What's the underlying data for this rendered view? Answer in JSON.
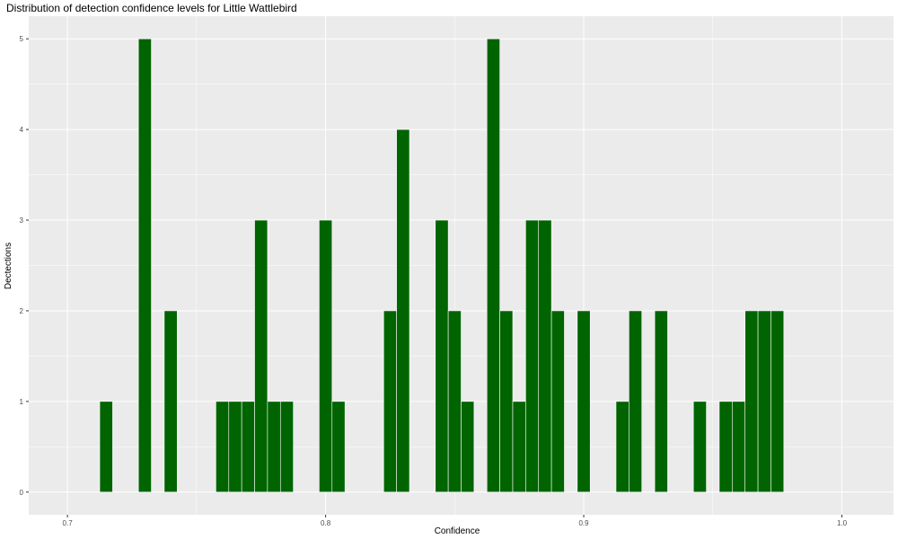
{
  "chart_data": {
    "type": "bar",
    "title": "Distribution of detection confidence levels for Little Wattlebird",
    "xlabel": "Confidence",
    "ylabel": "Dectections",
    "xlim": [
      0.685,
      1.02
    ],
    "ylim": [
      -0.25,
      5.25
    ],
    "x_ticks": [
      0.7,
      0.8,
      0.9,
      1.0
    ],
    "x_tick_labels": [
      "0.7",
      "0.8",
      "0.9",
      "1.0"
    ],
    "y_ticks": [
      0,
      1,
      2,
      3,
      4,
      5
    ],
    "y_tick_labels": [
      "0",
      "1",
      "2",
      "3",
      "4",
      "5"
    ],
    "bin_width": 0.005,
    "grid": true,
    "legend": "none",
    "bar_color": "#006400",
    "panel_background": "#EBEBEB",
    "gridline_color": "#FFFFFF",
    "x": [
      0.715,
      0.73,
      0.74,
      0.76,
      0.765,
      0.77,
      0.775,
      0.78,
      0.785,
      0.8,
      0.805,
      0.825,
      0.83,
      0.845,
      0.85,
      0.855,
      0.865,
      0.87,
      0.875,
      0.88,
      0.885,
      0.89,
      0.9,
      0.915,
      0.92,
      0.93,
      0.945,
      0.955,
      0.96,
      0.965,
      0.97,
      0.975
    ],
    "values": [
      1,
      5,
      2,
      1,
      1,
      1,
      3,
      1,
      1,
      3,
      1,
      2,
      4,
      3,
      2,
      1,
      5,
      2,
      1,
      3,
      3,
      2,
      2,
      1,
      2,
      2,
      1,
      1,
      1,
      2,
      2,
      2
    ]
  }
}
